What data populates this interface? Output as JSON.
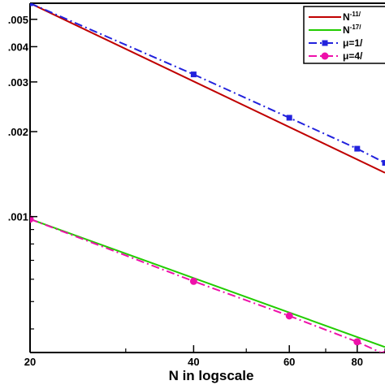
{
  "chart_data": {
    "type": "line",
    "title": "",
    "xlabel": "N in logscale",
    "ylabel": "",
    "xscale": "log",
    "yscale": "log",
    "xlim": [
      20,
      90
    ],
    "ylim": [
      0.00033,
      0.0057
    ],
    "grid": false,
    "legend_position": "top-right",
    "x_ticks": [
      {
        "value": 20,
        "label": "20"
      },
      {
        "value": 40,
        "label": "40"
      },
      {
        "value": 60,
        "label": "60"
      },
      {
        "value": 80,
        "label": "80"
      }
    ],
    "y_ticks": [
      {
        "value": 0.005,
        "label": ".005"
      },
      {
        "value": 0.004,
        "label": ".004"
      },
      {
        "value": 0.003,
        "label": ".003"
      },
      {
        "value": 0.002,
        "label": ".002"
      },
      {
        "value": 0.001,
        "label": ".001"
      }
    ],
    "y_minor_ticks": [
      0.0009,
      0.0008,
      0.0007,
      0.0006,
      0.0005,
      0.0004
    ],
    "x_minor_ticks": [
      30,
      50,
      70,
      90
    ],
    "series": [
      {
        "name_base": "N",
        "name_sup": "-11/",
        "color": "#c00000",
        "dash": "solid",
        "marker": "none",
        "x": [
          20,
          90
        ],
        "y": [
          0.0057,
          0.00143
        ]
      },
      {
        "name_base": "N",
        "name_sup": "-17/",
        "color": "#22cc00",
        "dash": "solid",
        "marker": "none",
        "x": [
          20,
          90
        ],
        "y": [
          0.00098,
          0.000345
        ]
      },
      {
        "name_base": "μ=1/",
        "color": "#2222dd",
        "dash": "dashdot",
        "marker": "square",
        "x": [
          20,
          40,
          60,
          80,
          90
        ],
        "y": [
          0.0057,
          0.00319,
          0.00224,
          0.00174,
          0.00155
        ]
      },
      {
        "name_base": "μ=4/",
        "color": "#ee11aa",
        "dash": "dashdot",
        "marker": "circle",
        "x": [
          20,
          40,
          60,
          80,
          90
        ],
        "y": [
          0.00098,
          0.00059,
          0.000445,
          0.00036,
          0.000325
        ]
      }
    ]
  }
}
